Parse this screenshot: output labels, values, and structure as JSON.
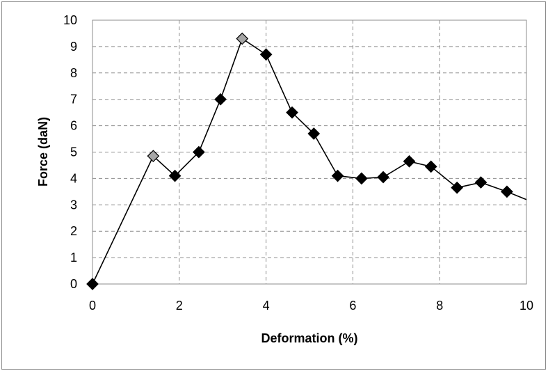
{
  "chart_data": {
    "type": "line",
    "title": "",
    "xlabel": "Deformation (%)",
    "ylabel": "Force (daN)",
    "xlim": [
      0,
      10
    ],
    "ylim": [
      0,
      10
    ],
    "xticks": [
      0,
      2,
      4,
      6,
      8,
      10
    ],
    "yticks": [
      0,
      1,
      2,
      3,
      4,
      5,
      6,
      7,
      8,
      9,
      10
    ],
    "grid": true,
    "line_color": "#000000",
    "series": [
      {
        "x": [
          0,
          1.4,
          1.9,
          2.45,
          2.95,
          3.45,
          4.0,
          4.6,
          5.1,
          5.65,
          6.2,
          6.7,
          7.3,
          7.8,
          8.4,
          8.95,
          9.55,
          10.0
        ],
        "y": [
          0,
          4.85,
          4.1,
          5.0,
          7.0,
          9.3,
          8.7,
          6.5,
          5.7,
          4.1,
          4.0,
          4.05,
          4.65,
          4.45,
          3.65,
          3.85,
          3.5,
          3.2
        ],
        "markers": [
          "diamond",
          "diamond",
          "diamond",
          "diamond",
          "diamond",
          "diamond",
          "diamond",
          "diamond",
          "diamond",
          "diamond",
          "diamond",
          "diamond",
          "diamond",
          "diamond",
          "diamond",
          "diamond",
          "diamond",
          "none"
        ],
        "marker_colors": [
          "#000000",
          "#a6a6a6",
          "#000000",
          "#000000",
          "#000000",
          "#a6a6a6",
          "#000000",
          "#000000",
          "#000000",
          "#000000",
          "#000000",
          "#000000",
          "#000000",
          "#000000",
          "#000000",
          "#000000",
          "#000000",
          "#000000"
        ]
      }
    ]
  }
}
